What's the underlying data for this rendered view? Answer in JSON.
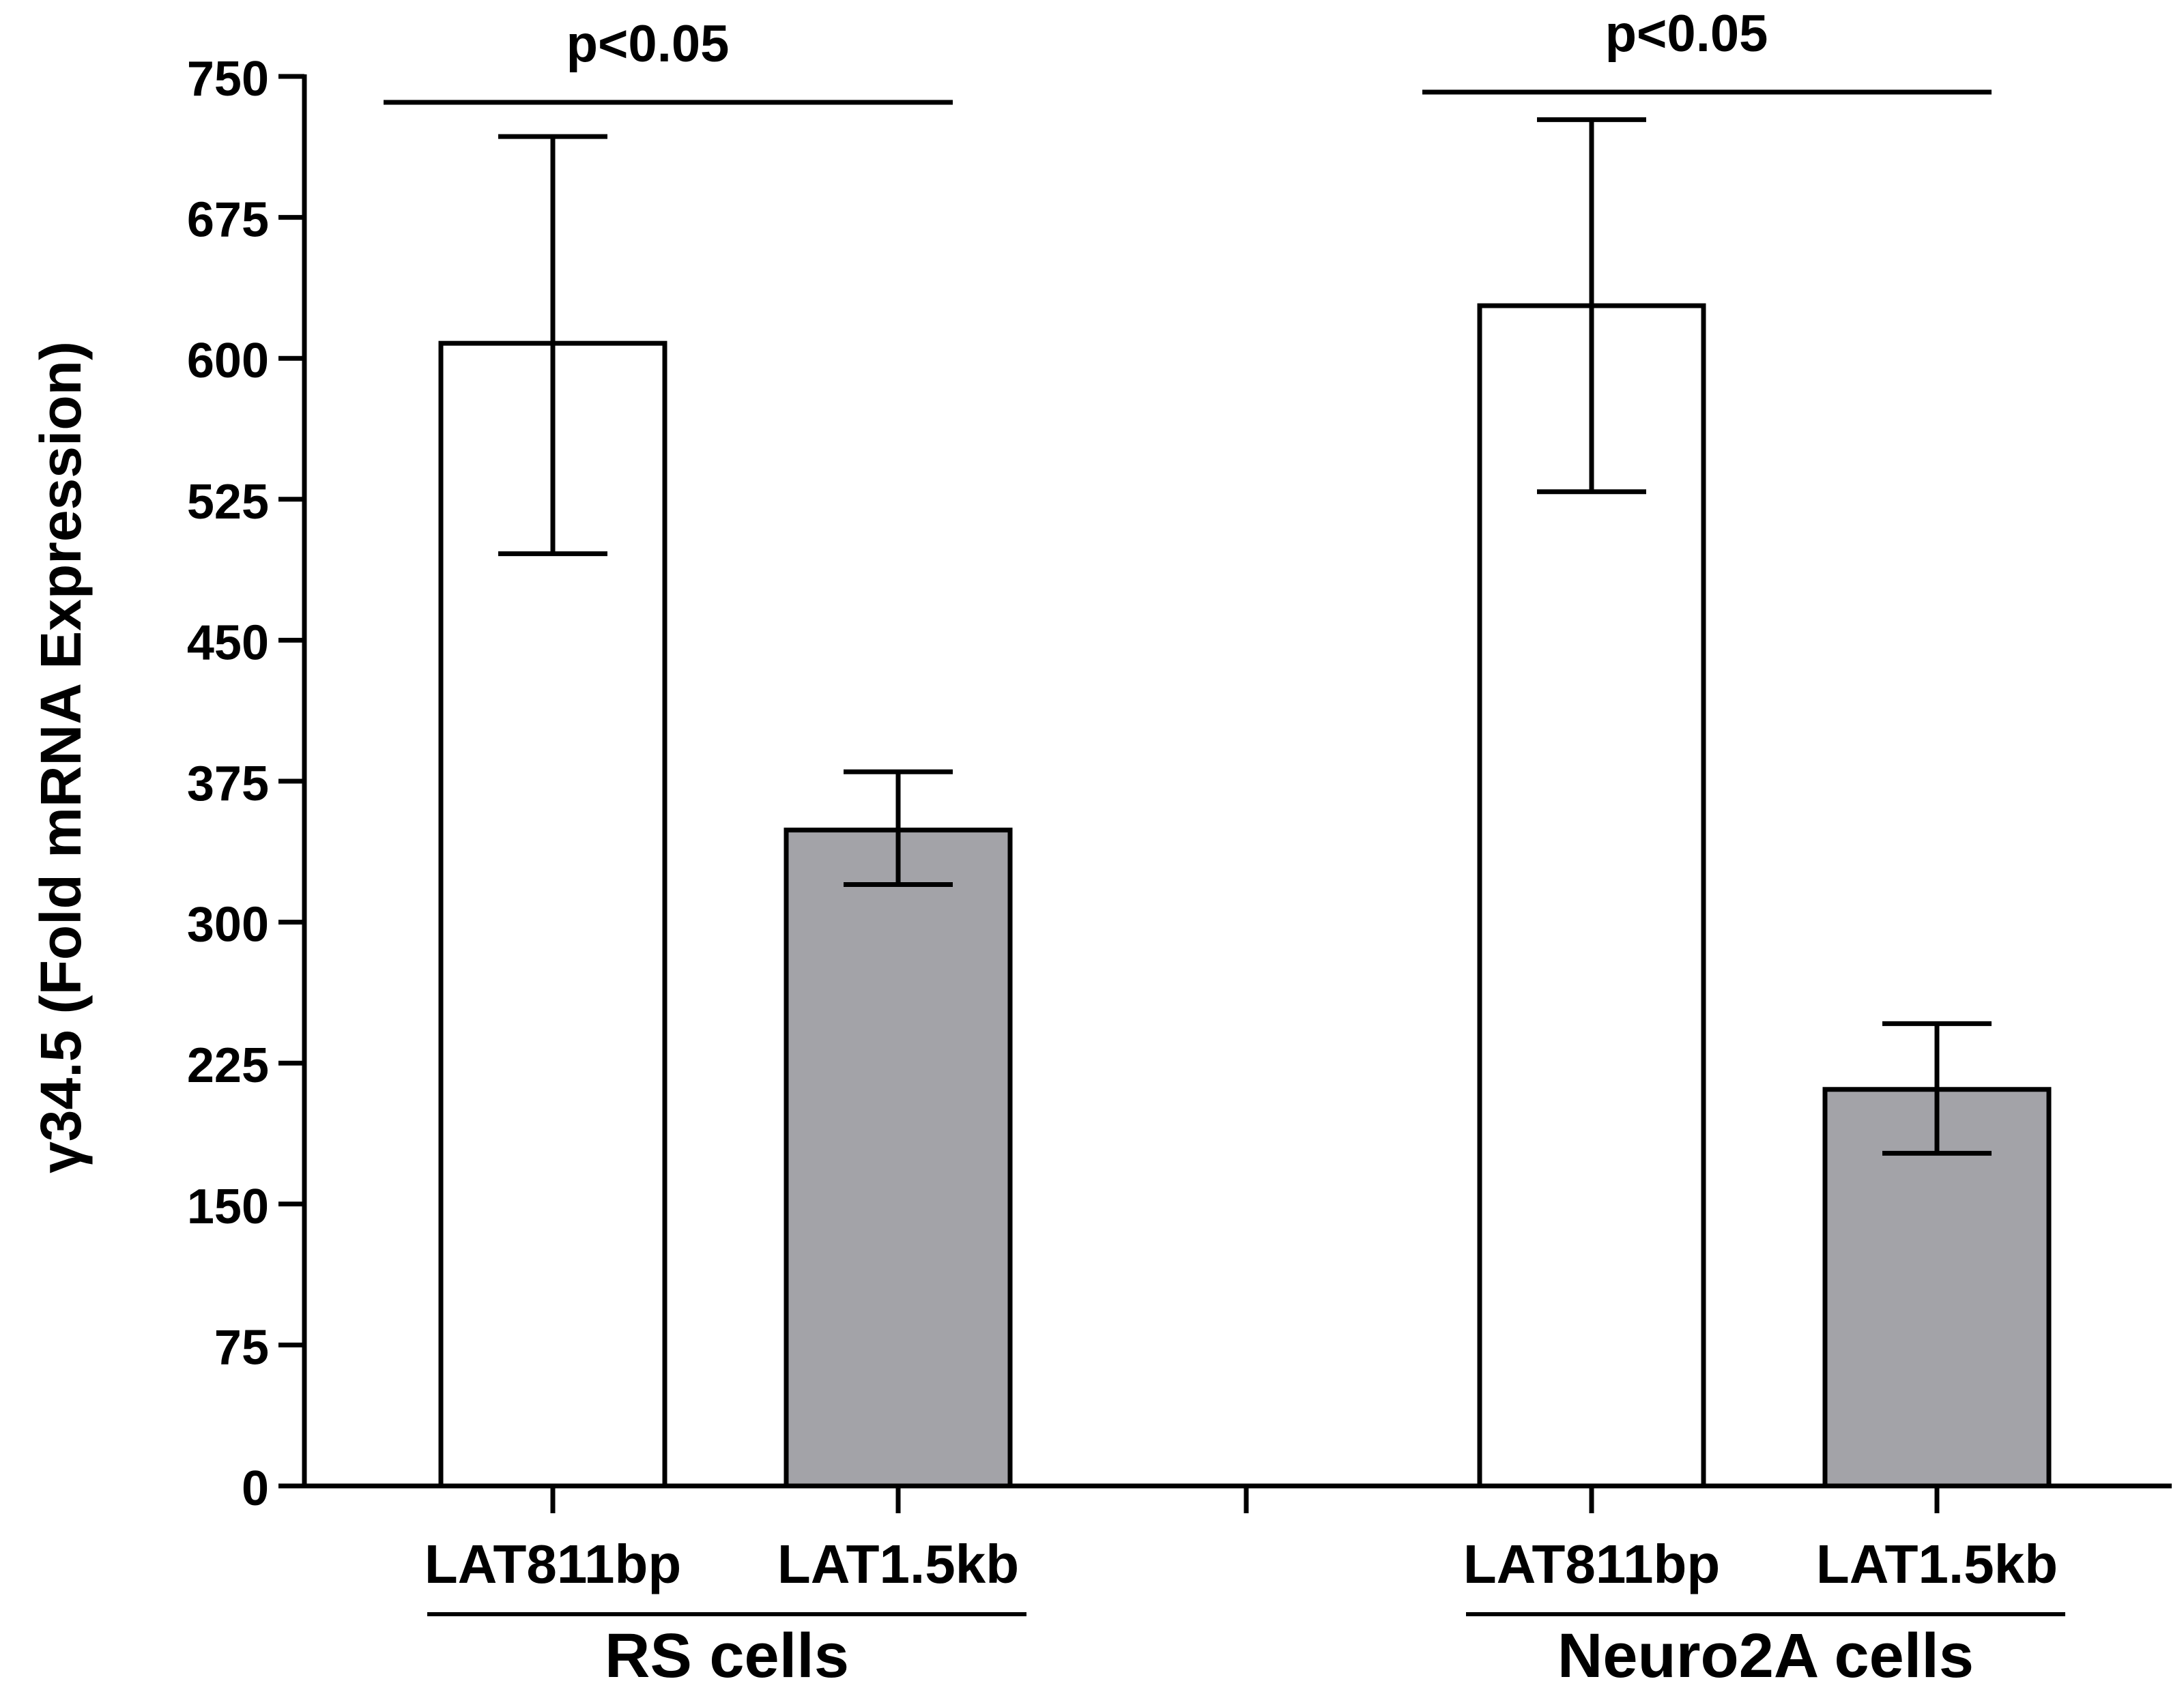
{
  "chart_data": {
    "type": "bar",
    "title": "",
    "xlabel": "",
    "ylabel": "γ34.5 (Fold mRNA Expression)",
    "ylim": [
      0,
      750
    ],
    "yticks": [
      "0",
      "75",
      "150",
      "225",
      "300",
      "375",
      "450",
      "525",
      "600",
      "675",
      "750"
    ],
    "grid": false,
    "groups": [
      {
        "name": "RS cells",
        "bars": [
          {
            "label": "LAT811bp",
            "value": 608,
            "error_low": 496,
            "error_high": 718,
            "color": "#ffffff"
          },
          {
            "label": "LAT1.5kb",
            "value": 349,
            "error_low": 320,
            "error_high": 380,
            "color": "#a3a3a8"
          }
        ],
        "significance": "p<0.05"
      },
      {
        "name": "Neuro2A cells",
        "bars": [
          {
            "label": "LAT811bp",
            "value": 628,
            "error_low": 529,
            "error_high": 727,
            "color": "#ffffff"
          },
          {
            "label": "LAT1.5kb",
            "value": 211,
            "error_low": 177,
            "error_high": 246,
            "color": "#a3a3a8"
          }
        ],
        "significance": "p<0.05"
      }
    ]
  }
}
